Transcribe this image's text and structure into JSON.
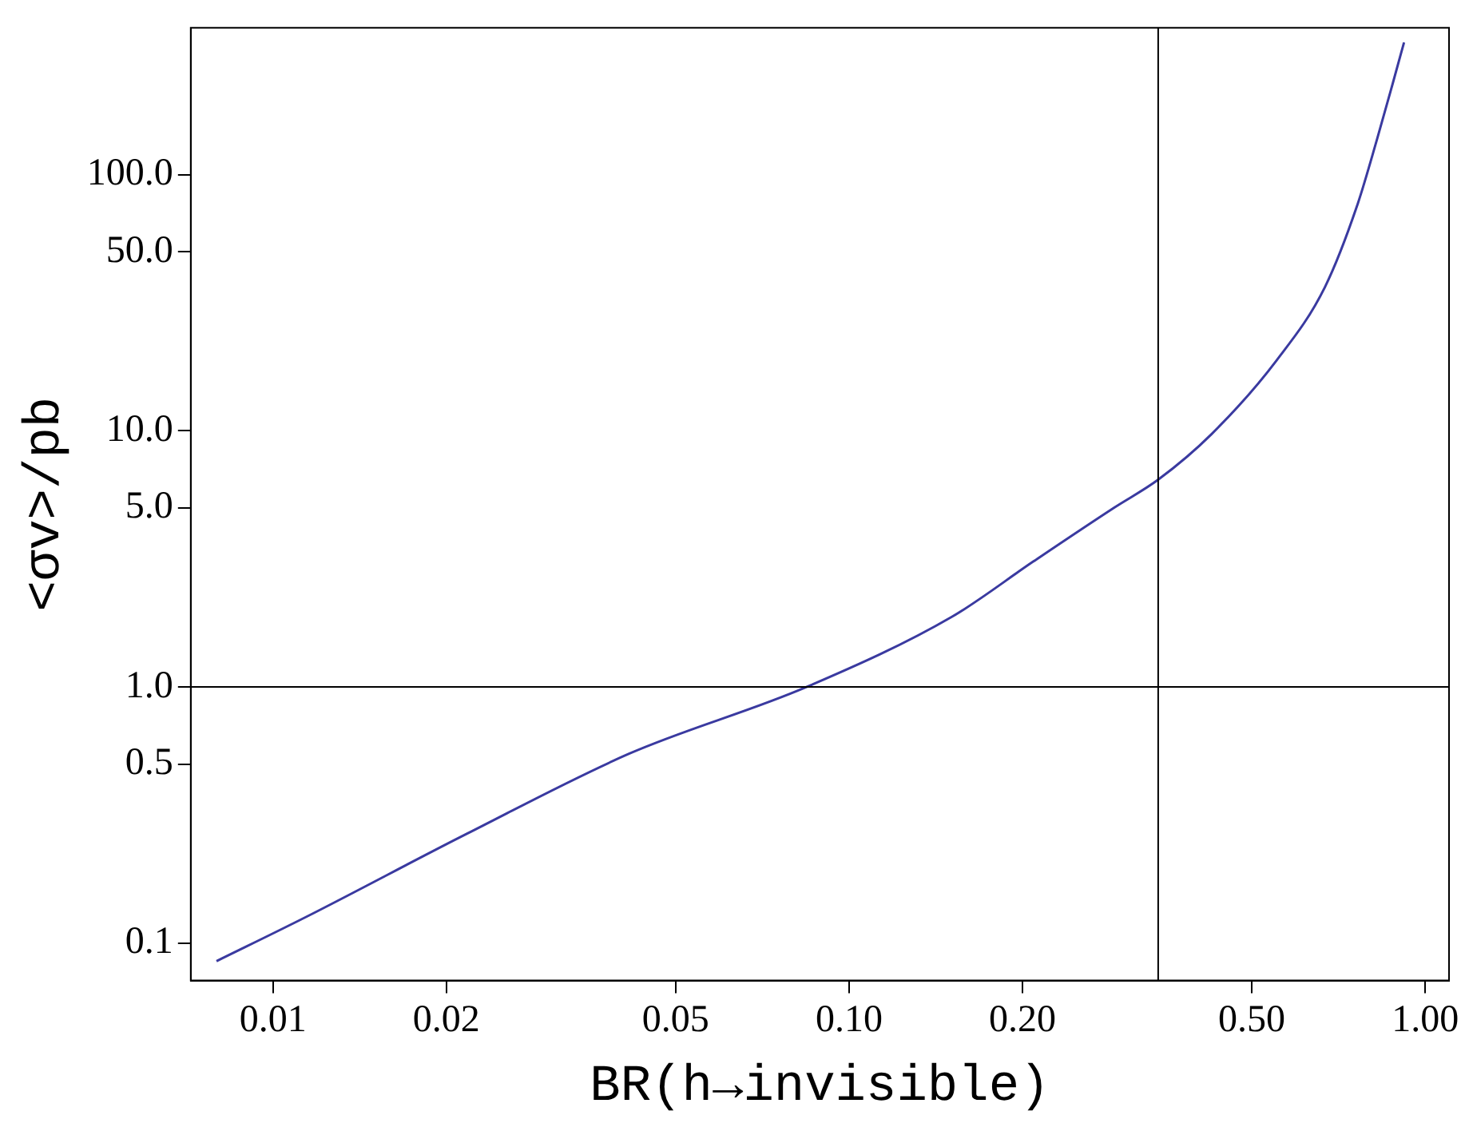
{
  "chart_data": {
    "type": "line",
    "xlabel": "BR(h→invisible)",
    "ylabel": "<σv>/pb",
    "log": "xy",
    "grid": false,
    "legend": false,
    "marker": "none",
    "line_style": "solid",
    "xlim": [
      0.0072,
      1.1
    ],
    "ylim": [
      0.0714,
      374
    ],
    "xticks": [
      0.01,
      0.02,
      0.05,
      {
        "value": 0.1,
        "label": "0.10"
      },
      {
        "value": 0.2,
        "label": "0.20"
      },
      {
        "value": 0.5,
        "label": "0.50"
      },
      {
        "value": 1,
        "label": "1.00"
      }
    ],
    "yticks": [
      0.1,
      0.5,
      {
        "value": 1,
        "label": "1.0"
      },
      {
        "value": 5,
        "label": "5.0"
      },
      {
        "value": 10,
        "label": "10.0"
      },
      {
        "value": 50,
        "label": "50.0"
      },
      {
        "value": 100,
        "label": "100.0"
      }
    ],
    "series": [
      {
        "color": "#3a3aa0",
        "x": [
          0.00798,
          0.01138,
          0.0217,
          0.0415,
          0.0845,
          0.151,
          0.209,
          0.289,
          0.344,
          0.426,
          0.552,
          0.67,
          0.762,
          0.824,
          0.879,
          0.919
        ],
        "values": [
          0.085,
          0.126,
          0.267,
          0.548,
          1.0,
          1.88,
          3.09,
          5.02,
          6.44,
          9.71,
          18.8,
          36.4,
          75.7,
          136,
          228,
          328
        ]
      }
    ],
    "ref_lines": [
      {
        "axis": "x",
        "value": 0.344,
        "label": null,
        "color": "#000000"
      },
      {
        "axis": "y",
        "value": 1,
        "label": null,
        "color": "#000000"
      }
    ]
  }
}
